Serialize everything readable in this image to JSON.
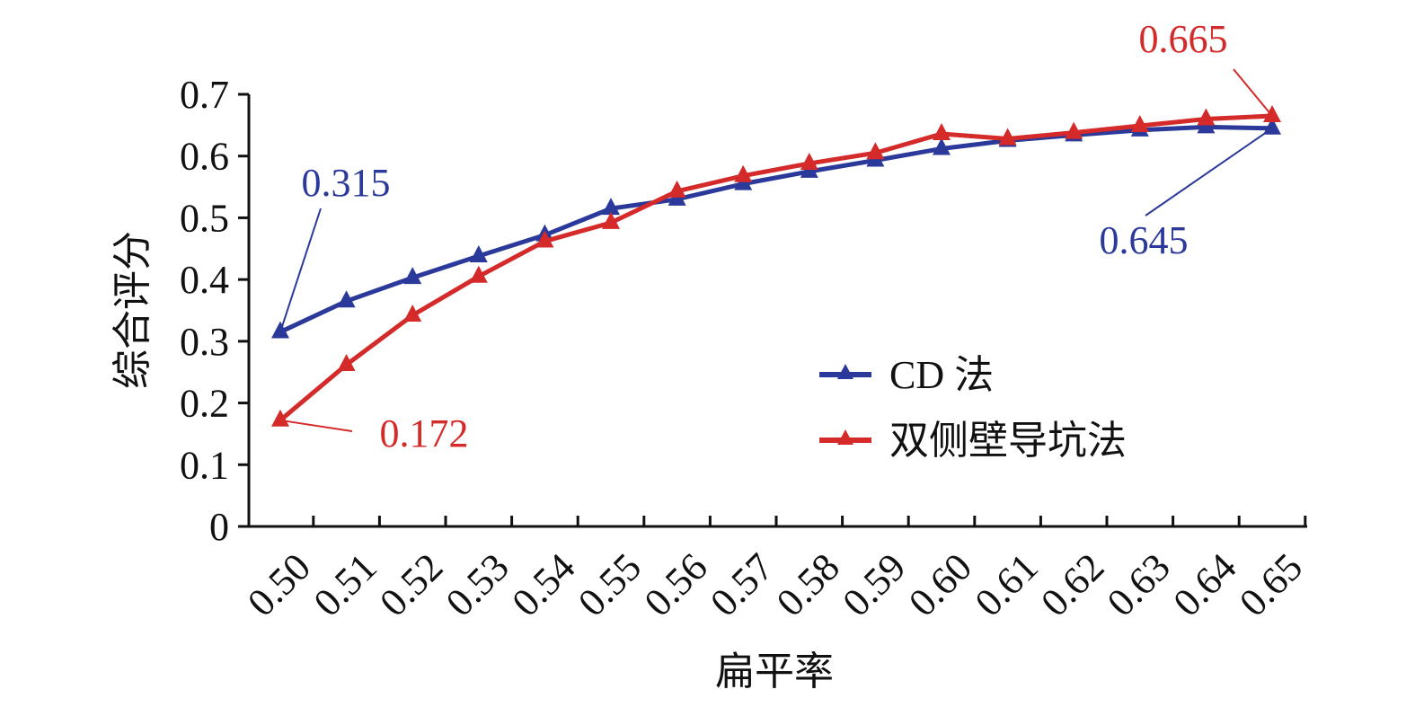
{
  "chart_data": {
    "type": "line",
    "xlabel": "扁平率",
    "ylabel": "综合评分",
    "categories": [
      "0.50",
      "0.51",
      "0.52",
      "0.53",
      "0.54",
      "0.55",
      "0.56",
      "0.57",
      "0.58",
      "0.59",
      "0.60",
      "0.61",
      "0.62",
      "0.63",
      "0.64",
      "0.65"
    ],
    "y_ticks": [
      "0",
      "0.1",
      "0.2",
      "0.3",
      "0.4",
      "0.5",
      "0.6",
      "0.7"
    ],
    "ylim": [
      0,
      0.7
    ],
    "grid": false,
    "legend_position": "right",
    "series": [
      {
        "name": "CD 法",
        "color": "#2b3a9a",
        "marker": "triangle",
        "values": [
          0.315,
          0.365,
          0.403,
          0.438,
          0.472,
          0.515,
          0.53,
          0.555,
          0.575,
          0.593,
          0.612,
          0.625,
          0.634,
          0.642,
          0.647,
          0.645
        ]
      },
      {
        "name": "双侧壁导坑法",
        "color": "#d42a2a",
        "marker": "triangle",
        "values": [
          0.172,
          0.262,
          0.342,
          0.405,
          0.462,
          0.492,
          0.543,
          0.568,
          0.588,
          0.605,
          0.636,
          0.628,
          0.638,
          0.649,
          0.66,
          0.665
        ]
      }
    ],
    "annotations": [
      {
        "text": "0.315",
        "series": 0,
        "index": 0,
        "color": "#2b3a9a"
      },
      {
        "text": "0.172",
        "series": 1,
        "index": 0,
        "color": "#d42a2a"
      },
      {
        "text": "0.665",
        "series": 1,
        "index": 15,
        "color": "#d42a2a"
      },
      {
        "text": "0.645",
        "series": 0,
        "index": 15,
        "color": "#2b3a9a"
      }
    ]
  }
}
